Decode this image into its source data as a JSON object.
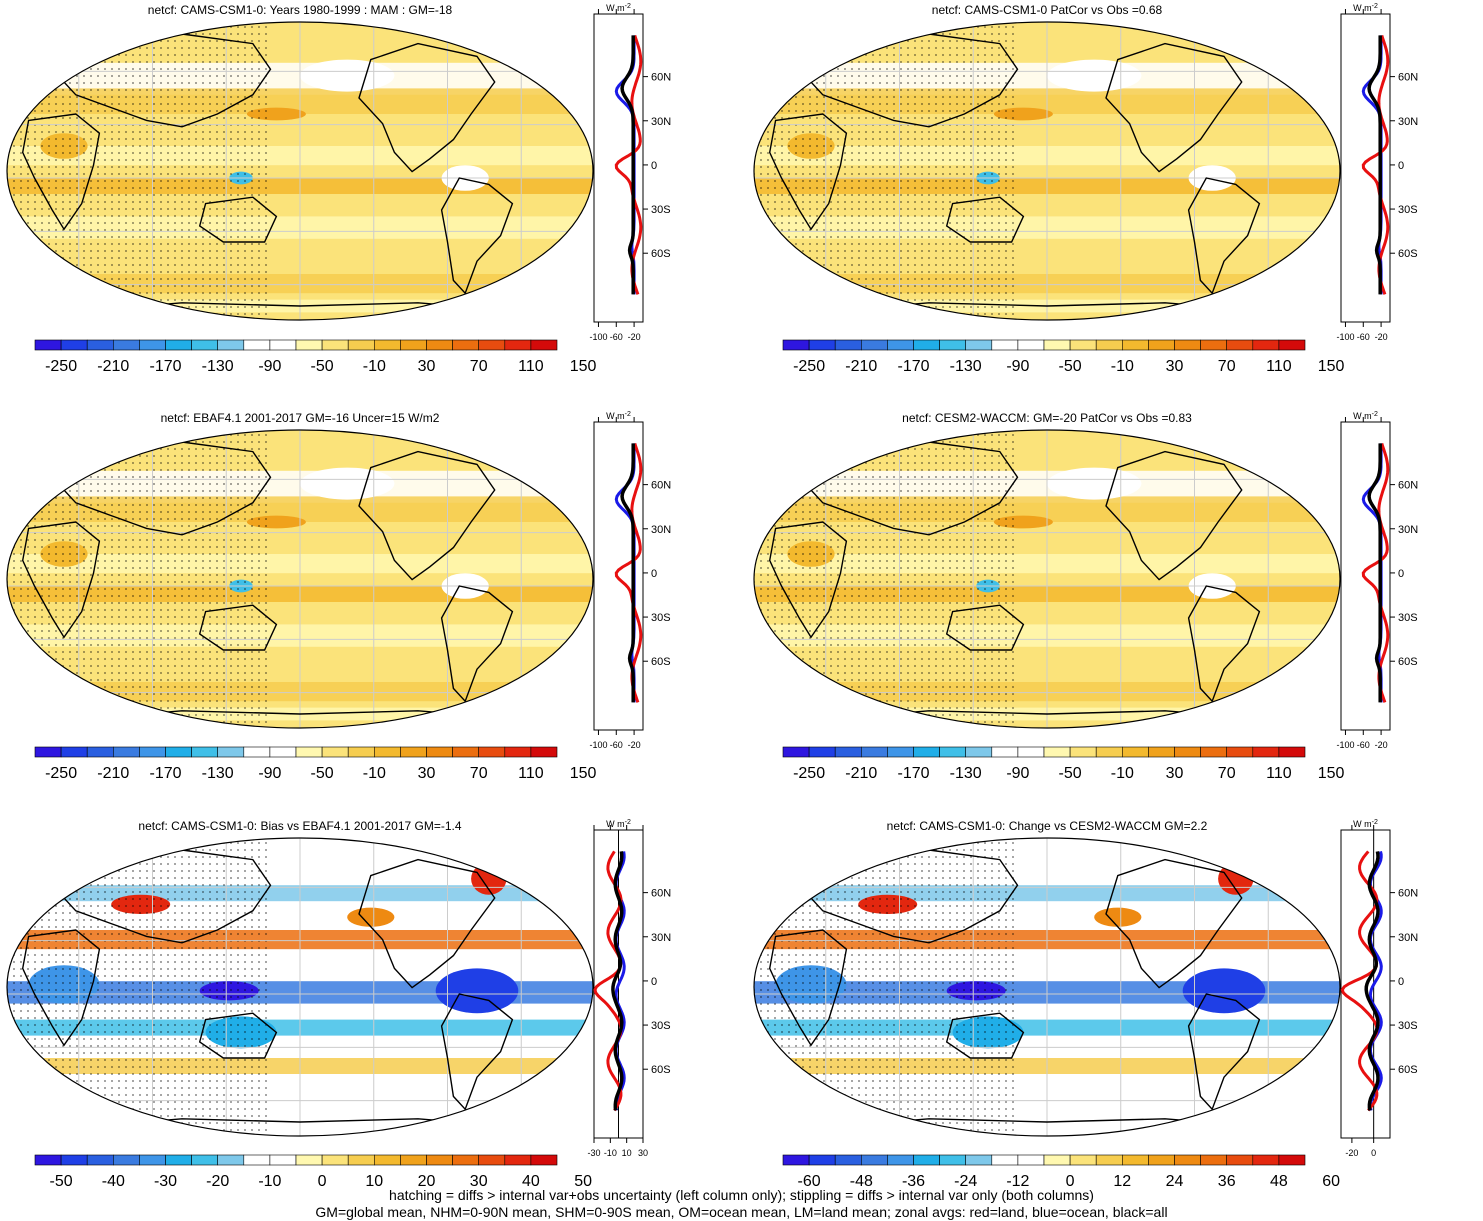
{
  "panels": [
    {
      "title": "netcf: CAMS-CSM1-0: Years 1980-1999 : MAM : GM=-18",
      "colorbar": {
        "labels": [
          "-250",
          "-210",
          "-170",
          "-130",
          "-90",
          "-50",
          "-10",
          "30",
          "70",
          "110",
          "150"
        ],
        "scheme": "main"
      },
      "zonal": {
        "unit_top": "W m",
        "unit_sup": "-2",
        "xticks": [
          "-100",
          "-60",
          "-20"
        ],
        "xrange": [
          -110,
          0
        ],
        "lat_ticks": [
          "60N",
          "30N",
          "0",
          "30S",
          "60S"
        ]
      }
    },
    {
      "title": "netcf: CAMS-CSM1-0 PatCor vs Obs =0.68",
      "colorbar": {
        "labels": [
          "-250",
          "-210",
          "-170",
          "-130",
          "-90",
          "-50",
          "-10",
          "30",
          "70",
          "110",
          "150"
        ],
        "scheme": "main"
      },
      "zonal": {
        "unit_top": "W m",
        "unit_sup": "-2",
        "xticks": [
          "-100",
          "-60",
          "-20"
        ],
        "xrange": [
          -110,
          0
        ],
        "lat_ticks": [
          "60N",
          "30N",
          "0",
          "30S",
          "60S"
        ]
      }
    },
    {
      "title": "netcf: EBAF4.1 2001-2017 GM=-16 Uncer=15 W/m2",
      "colorbar": {
        "labels": [
          "-250",
          "-210",
          "-170",
          "-130",
          "-90",
          "-50",
          "-10",
          "30",
          "70",
          "110",
          "150"
        ],
        "scheme": "main"
      },
      "zonal": {
        "unit_top": "W m",
        "unit_sup": "-2",
        "xticks": [
          "-100",
          "-60",
          "-20"
        ],
        "xrange": [
          -110,
          0
        ],
        "lat_ticks": [
          "60N",
          "30N",
          "0",
          "30S",
          "60S"
        ]
      }
    },
    {
      "title": "netcf: CESM2-WACCM: GM=-20 PatCor vs Obs =0.83",
      "colorbar": {
        "labels": [
          "-250",
          "-210",
          "-170",
          "-130",
          "-90",
          "-50",
          "-10",
          "30",
          "70",
          "110",
          "150"
        ],
        "scheme": "main"
      },
      "zonal": {
        "unit_top": "W m",
        "unit_sup": "-2",
        "xticks": [
          "-100",
          "-60",
          "-20"
        ],
        "xrange": [
          -110,
          0
        ],
        "lat_ticks": [
          "60N",
          "30N",
          "0",
          "30S",
          "60S"
        ]
      }
    },
    {
      "title": "netcf: CAMS-CSM1-0: Bias vs EBAF4.1 2001-2017 GM=-1.4",
      "colorbar": {
        "labels": [
          "-50",
          "-40",
          "-30",
          "-20",
          "-10",
          "0",
          "10",
          "20",
          "30",
          "40",
          "50"
        ],
        "scheme": "diff"
      },
      "zonal": {
        "unit_top": "W m",
        "unit_sup": "-2",
        "xticks": [
          "-30",
          "-10",
          "10",
          "30"
        ],
        "xrange": [
          -30,
          30
        ],
        "lat_ticks": [
          "60N",
          "30N",
          "0",
          "30S",
          "60S"
        ]
      }
    },
    {
      "title": "netcf: CAMS-CSM1-0: Change vs CESM2-WACCM GM=2.2",
      "colorbar": {
        "labels": [
          "-60",
          "-48",
          "-36",
          "-24",
          "-12",
          "0",
          "12",
          "24",
          "36",
          "48",
          "60"
        ],
        "scheme": "diff"
      },
      "zonal": {
        "unit_top": "W m",
        "unit_sup": "-2",
        "xticks": [
          "-20",
          "0"
        ],
        "xrange": [
          -30,
          15
        ],
        "lat_ticks": [
          "60N",
          "30N",
          "0",
          "30S",
          "60S"
        ]
      }
    }
  ],
  "colors": {
    "main_scale": [
      "#2e16e0",
      "#1f3fe6",
      "#2a5fe0",
      "#3a7be0",
      "#3e95e8",
      "#20aee8",
      "#3fbfe8",
      "#7ec8ea",
      "#ffffff",
      "#ffffff",
      "#fff8b0",
      "#fbe37a",
      "#f6cd4f",
      "#f3b92e",
      "#f0a21c",
      "#ee8a12",
      "#ec6e0f",
      "#e84c0f",
      "#e3270f",
      "#d40a0a"
    ],
    "diff_scale": [
      "#2e16e0",
      "#1f3fe6",
      "#2a5fe0",
      "#3a7be0",
      "#3e95e8",
      "#20aee8",
      "#3fbfe8",
      "#7ec8ea",
      "#ffffff",
      "#ffffff",
      "#fff8b0",
      "#fbe37a",
      "#f6cd4f",
      "#f3b92e",
      "#f0a21c",
      "#ee8a12",
      "#ec6e0f",
      "#e84c0f",
      "#e3270f",
      "#d40a0a"
    ],
    "land_line": "#e81010",
    "ocean_line": "#1a1ae8",
    "all_line": "#000000"
  },
  "footer": {
    "line1": "hatching = diffs > internal var+obs uncertainty (left column only); stippling = diffs > internal var only (both columns)",
    "line2": "GM=global mean, NHM=0-90N mean, SHM=0-90S mean, OM=ocean mean, LM=land mean; zonal avgs: red=land, blue=ocean, black=all"
  }
}
